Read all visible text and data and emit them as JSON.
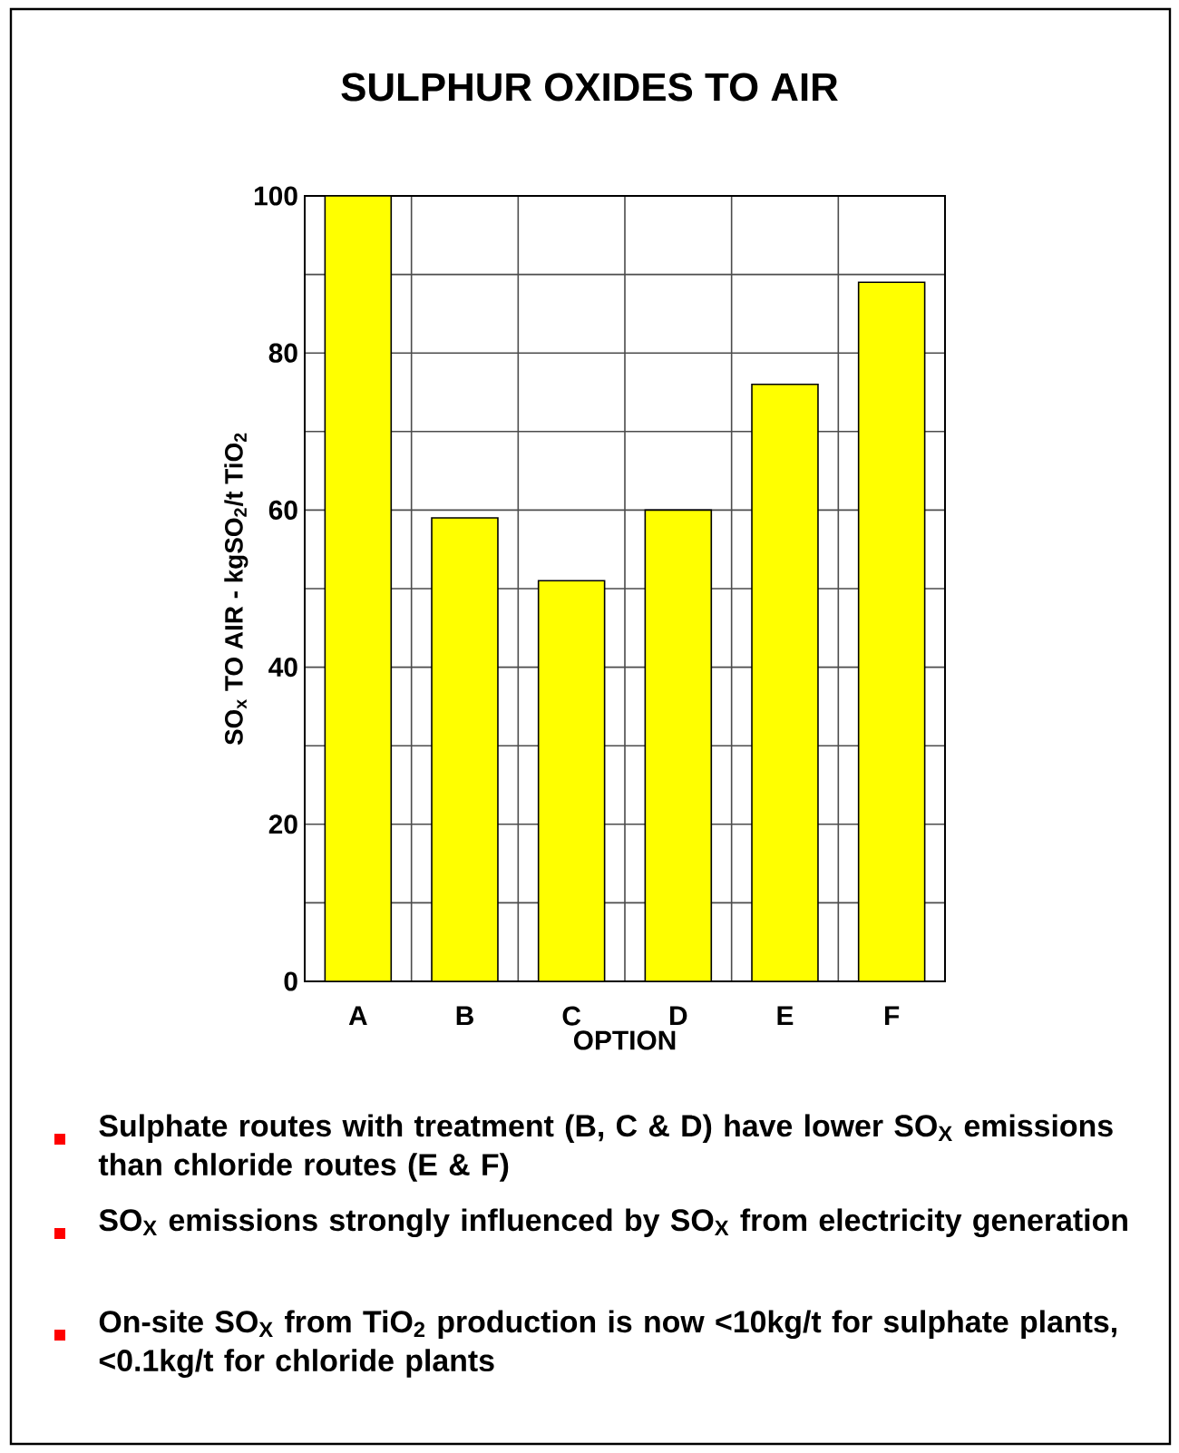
{
  "chart_data": {
    "type": "bar",
    "title": "SULPHUR OXIDES TO AIR",
    "xlabel": "OPTION",
    "ylabel": "SO$_{x}$ TO AIR - kgSO$_{2}$/t TiO$_{2}$",
    "categories": [
      "A",
      "B",
      "C",
      "D",
      "E",
      "F"
    ],
    "values": [
      100,
      59,
      51,
      60,
      76,
      89
    ],
    "color": "#ffff00",
    "ylim": [
      0,
      100
    ],
    "yticks": [
      0,
      {
        "value": 10,
        "label": null
      },
      20,
      {
        "value": 30,
        "label": null
      },
      40,
      {
        "value": 50,
        "label": null
      },
      60,
      {
        "value": 70,
        "label": null
      },
      80,
      {
        "value": 90,
        "label": null
      },
      100
    ],
    "grid": true,
    "annotations": [
      "Sulphate routes with treatment (B, C & D) have lower SO$_{X}$ emissions than chloride routes  (E & F)",
      "SO$_{X}$ emissions strongly influenced by SO$_{X}$ from electricity generation",
      "On-site SO$_{X}$ from TiO$_{2}$ production is now <10kg/t for sulphate plants, <0.1kg/t for chloride plants"
    ]
  }
}
